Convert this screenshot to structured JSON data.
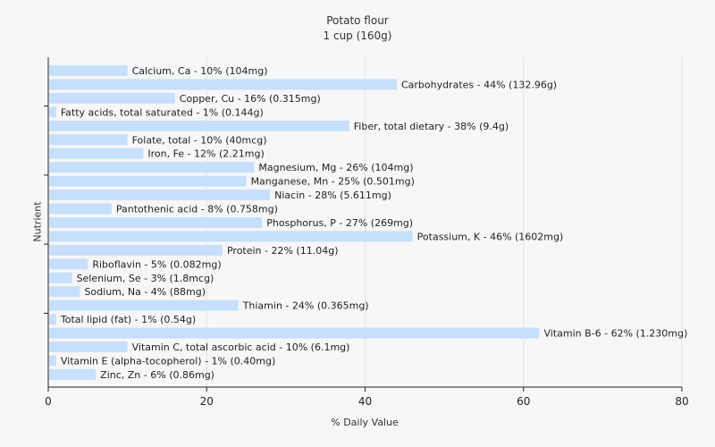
{
  "chart_data": {
    "type": "bar",
    "orientation": "horizontal",
    "title": "Potato flour",
    "subtitle": "1 cup (160g)",
    "xlabel": "% Daily Value",
    "ylabel": "Nutrient",
    "xlim": [
      0,
      80
    ],
    "xticks": [
      0,
      20,
      40,
      60,
      80
    ],
    "grid": true,
    "bar_color": "#c6dffc",
    "categories": [
      "Calcium, Ca",
      "Carbohydrates",
      "Copper, Cu",
      "Fatty acids, total saturated",
      "Fiber, total dietary",
      "Folate, total",
      "Iron, Fe",
      "Magnesium, Mg",
      "Manganese, Mn",
      "Niacin",
      "Pantothenic acid",
      "Phosphorus, P",
      "Potassium, K",
      "Protein",
      "Riboflavin",
      "Selenium, Se",
      "Sodium, Na",
      "Thiamin",
      "Total lipid (fat)",
      "Vitamin B-6",
      "Vitamin C, total ascorbic acid",
      "Vitamin E (alpha-tocopherol)",
      "Zinc, Zn"
    ],
    "values": [
      10,
      44,
      16,
      1,
      38,
      10,
      12,
      26,
      25,
      28,
      8,
      27,
      46,
      22,
      5,
      3,
      4,
      24,
      1,
      62,
      10,
      1,
      6
    ],
    "labels": [
      "Calcium, Ca - 10% (104mg)",
      "Carbohydrates - 44% (132.96g)",
      "Copper, Cu - 16% (0.315mg)",
      "Fatty acids, total saturated - 1% (0.144g)",
      "Fiber, total dietary - 38% (9.4g)",
      "Folate, total - 10% (40mcg)",
      "Iron, Fe - 12% (2.21mg)",
      "Magnesium, Mg - 26% (104mg)",
      "Manganese, Mn - 25% (0.501mg)",
      "Niacin - 28% (5.611mg)",
      "Pantothenic acid - 8% (0.758mg)",
      "Phosphorus, P - 27% (269mg)",
      "Potassium, K - 46% (1602mg)",
      "Protein - 22% (11.04g)",
      "Riboflavin - 5% (0.082mg)",
      "Selenium, Se - 3% (1.8mcg)",
      "Sodium, Na - 4% (88mg)",
      "Thiamin - 24% (0.365mg)",
      "Total lipid (fat) - 1% (0.54g)",
      "Vitamin B-6 - 62% (1.230mg)",
      "Vitamin C, total ascorbic acid - 10% (6.1mg)",
      "Vitamin E (alpha-tocopherol) - 1% (0.40mg)",
      "Zinc, Zn - 6% (0.86mg)"
    ]
  }
}
